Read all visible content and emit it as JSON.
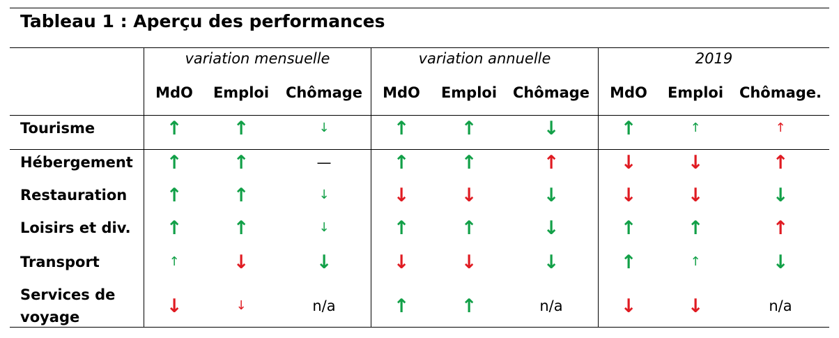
{
  "table": {
    "title": "Tableau 1 : Aperçu des performances",
    "groups": [
      "variation mensuelle",
      "variation annuelle",
      "2019"
    ],
    "subheaders": [
      "MdO",
      "Emploi",
      "Chômage",
      "MdO",
      "Emploi",
      "Chômage",
      "MdO",
      "Emploi",
      "Chômage."
    ],
    "rows": [
      {
        "label": [
          "Tourisme"
        ],
        "cells": [
          {
            "t": "↑",
            "c": "green",
            "s": "big"
          },
          {
            "t": "↑",
            "c": "green",
            "s": "big"
          },
          {
            "t": "↓",
            "c": "green",
            "s": "small"
          },
          {
            "t": "↑",
            "c": "green",
            "s": "big"
          },
          {
            "t": "↑",
            "c": "green",
            "s": "big"
          },
          {
            "t": "↓",
            "c": "green",
            "s": "big"
          },
          {
            "t": "↑",
            "c": "green",
            "s": "big"
          },
          {
            "t": "↑",
            "c": "green",
            "s": "small"
          },
          {
            "t": "↑",
            "c": "red",
            "s": "small"
          }
        ]
      },
      {
        "label": [
          "Hébergement"
        ],
        "cells": [
          {
            "t": "↑",
            "c": "green",
            "s": "big"
          },
          {
            "t": "↑",
            "c": "green",
            "s": "big"
          },
          {
            "t": "—",
            "c": "black",
            "s": "dash"
          },
          {
            "t": "↑",
            "c": "green",
            "s": "big"
          },
          {
            "t": "↑",
            "c": "green",
            "s": "big"
          },
          {
            "t": "↑",
            "c": "red",
            "s": "big"
          },
          {
            "t": "↓",
            "c": "red",
            "s": "big"
          },
          {
            "t": "↓",
            "c": "red",
            "s": "big"
          },
          {
            "t": "↑",
            "c": "red",
            "s": "big"
          }
        ]
      },
      {
        "label": [
          "Restauration"
        ],
        "cells": [
          {
            "t": "↑",
            "c": "green",
            "s": "big"
          },
          {
            "t": "↑",
            "c": "green",
            "s": "big"
          },
          {
            "t": "↓",
            "c": "green",
            "s": "small"
          },
          {
            "t": "↓",
            "c": "red",
            "s": "big"
          },
          {
            "t": "↓",
            "c": "red",
            "s": "big"
          },
          {
            "t": "↓",
            "c": "green",
            "s": "big"
          },
          {
            "t": "↓",
            "c": "red",
            "s": "big"
          },
          {
            "t": "↓",
            "c": "red",
            "s": "big"
          },
          {
            "t": "↓",
            "c": "green",
            "s": "big"
          }
        ]
      },
      {
        "label": [
          "Loisirs et div."
        ],
        "cells": [
          {
            "t": "↑",
            "c": "green",
            "s": "big"
          },
          {
            "t": "↑",
            "c": "green",
            "s": "big"
          },
          {
            "t": "↓",
            "c": "green",
            "s": "small"
          },
          {
            "t": "↑",
            "c": "green",
            "s": "big"
          },
          {
            "t": "↑",
            "c": "green",
            "s": "big"
          },
          {
            "t": "↓",
            "c": "green",
            "s": "big"
          },
          {
            "t": "↑",
            "c": "green",
            "s": "big"
          },
          {
            "t": "↑",
            "c": "green",
            "s": "big"
          },
          {
            "t": "↑",
            "c": "red",
            "s": "big"
          }
        ]
      },
      {
        "label": [
          "Transport"
        ],
        "cells": [
          {
            "t": "↑",
            "c": "green",
            "s": "small"
          },
          {
            "t": "↓",
            "c": "red",
            "s": "big"
          },
          {
            "t": "↓",
            "c": "green",
            "s": "big"
          },
          {
            "t": "↓",
            "c": "red",
            "s": "big"
          },
          {
            "t": "↓",
            "c": "red",
            "s": "big"
          },
          {
            "t": "↓",
            "c": "green",
            "s": "big"
          },
          {
            "t": "↑",
            "c": "green",
            "s": "big"
          },
          {
            "t": "↑",
            "c": "green",
            "s": "small"
          },
          {
            "t": "↓",
            "c": "green",
            "s": "big"
          }
        ]
      },
      {
        "label": [
          "Services de",
          "voyage"
        ],
        "cells": [
          {
            "t": "↓",
            "c": "red",
            "s": "big"
          },
          {
            "t": "↓",
            "c": "red",
            "s": "small"
          },
          {
            "t": "n/a",
            "c": "black",
            "s": "txt"
          },
          {
            "t": "↑",
            "c": "green",
            "s": "big"
          },
          {
            "t": "↑",
            "c": "green",
            "s": "big"
          },
          {
            "t": "n/a",
            "c": "black",
            "s": "txt"
          },
          {
            "t": "↓",
            "c": "red",
            "s": "big"
          },
          {
            "t": "↓",
            "c": "red",
            "s": "big"
          },
          {
            "t": "n/a",
            "c": "black",
            "s": "txt"
          }
        ]
      }
    ],
    "colors": {
      "green": "#12a048",
      "red": "#e01b22",
      "black": "#000000",
      "rule": "#000000"
    }
  }
}
